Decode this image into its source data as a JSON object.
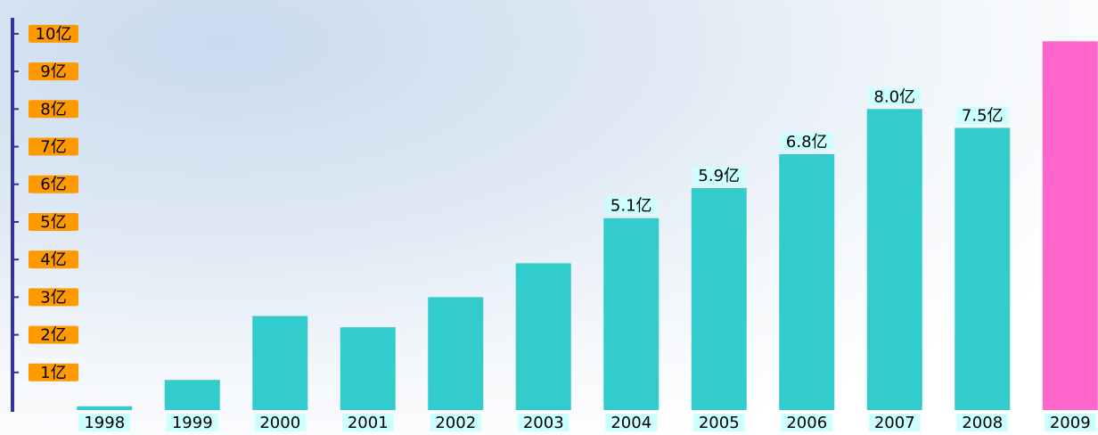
{
  "chart_data": {
    "type": "bar",
    "categories": [
      "1998",
      "1999",
      "2000",
      "2001",
      "2002",
      "2003",
      "2004",
      "2005",
      "2006",
      "2007",
      "2008",
      "2009"
    ],
    "values": [
      0.1,
      0.8,
      2.5,
      2.2,
      3.0,
      3.9,
      5.1,
      5.9,
      6.8,
      8.0,
      7.5,
      9.8
    ],
    "value_labels": [
      null,
      null,
      null,
      null,
      null,
      null,
      "5.1亿",
      "5.9亿",
      "6.8亿",
      "8.0亿",
      "7.5亿",
      null
    ],
    "colors": [
      "#33cccc",
      "#33cccc",
      "#33cccc",
      "#33cccc",
      "#33cccc",
      "#33cccc",
      "#33cccc",
      "#33cccc",
      "#33cccc",
      "#33cccc",
      "#33cccc",
      "#ff66cc"
    ],
    "ylim": [
      0,
      10.4
    ],
    "yticks": [
      {
        "value": 1,
        "label": "1亿"
      },
      {
        "value": 2,
        "label": "2亿"
      },
      {
        "value": 3,
        "label": "3亿"
      },
      {
        "value": 4,
        "label": "4亿"
      },
      {
        "value": 5,
        "label": "5亿"
      },
      {
        "value": 6,
        "label": "6亿"
      },
      {
        "value": 7,
        "label": "7亿"
      },
      {
        "value": 8,
        "label": "8亿"
      },
      {
        "value": 9,
        "label": "9亿"
      },
      {
        "value": 10,
        "label": "10亿"
      }
    ]
  }
}
